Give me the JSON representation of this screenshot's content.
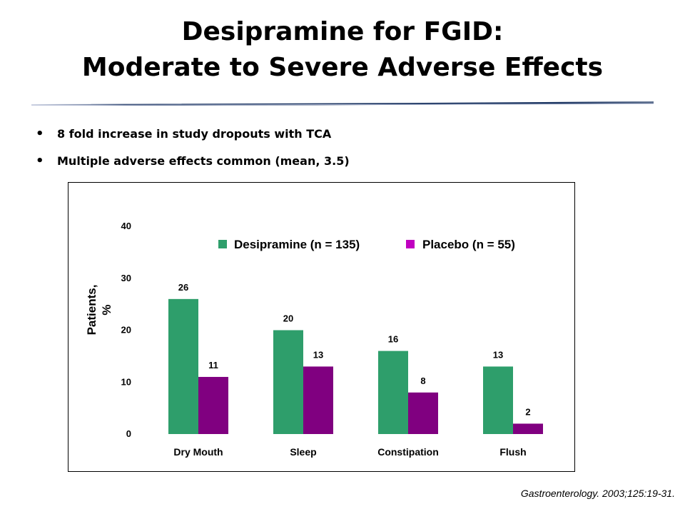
{
  "slide": {
    "title_line1": "Desipramine for FGID:",
    "title_line2": "Moderate to Severe Adverse Effects",
    "bullets": [
      "8 fold increase in study dropouts with TCA",
      "Multiple adverse effects common (mean, 3.5)"
    ],
    "bullet_marker": "•",
    "citation": "Gastroenterology. 2003;125:19-31.",
    "rule_color": "#1F3864"
  },
  "chart_data": {
    "type": "bar",
    "title": "",
    "xlabel": "",
    "ylabel": "Patients, %",
    "ylabel_line1": "Patients,",
    "ylabel_line2": "%",
    "ylim": [
      0,
      40
    ],
    "yticks": [
      0,
      10,
      20,
      30,
      40
    ],
    "grid": false,
    "legend_position": "top-right",
    "categories": [
      "Dry Mouth",
      "Sleep",
      "Constipation",
      "Flush"
    ],
    "series": [
      {
        "name": "Desipramine (n = 135)",
        "color": "#2E9E6B",
        "values": [
          26,
          20,
          16,
          13
        ]
      },
      {
        "name": "Placebo (n = 55)",
        "color": "#800080",
        "legend_color": "#C000C0",
        "values": [
          11,
          13,
          8,
          2
        ]
      }
    ]
  }
}
